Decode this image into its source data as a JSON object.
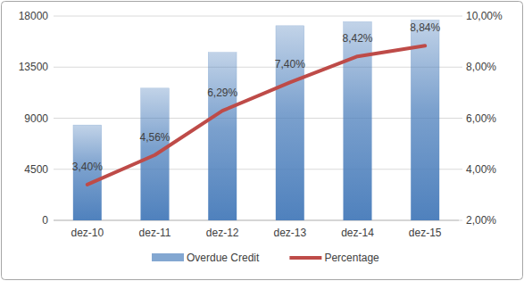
{
  "chart_data": {
    "type": "bar",
    "categories": [
      "dez-10",
      "dez-11",
      "dez-12",
      "dez-13",
      "dez-14",
      "dez-15"
    ],
    "series": [
      {
        "name": "Overdue Credit",
        "type": "bar",
        "color": "#4f81bd",
        "values": [
          8400,
          11650,
          14800,
          17150,
          17500,
          17650
        ]
      },
      {
        "name": "Percentage",
        "type": "line",
        "color": "#be4b48",
        "axis": "y2",
        "data_labels": true,
        "values": [
          3.4,
          4.56,
          6.29,
          7.4,
          8.42,
          8.84
        ],
        "value_labels": [
          "3,40%",
          "4,56%",
          "6,29%",
          "7,40%",
          "8,42%",
          "8,84%"
        ]
      }
    ],
    "ylim": [
      0,
      18000
    ],
    "yticks": [
      0,
      4500,
      9000,
      13500,
      18000
    ],
    "y2lim": [
      2,
      10
    ],
    "y2ticks": [
      {
        "value": 2,
        "label": "2,00%"
      },
      {
        "value": 4,
        "label": "4,00%"
      },
      {
        "value": 6,
        "label": "6,00%"
      },
      {
        "value": 8,
        "label": "8,00%"
      },
      {
        "value": 10,
        "label": "10,00%"
      }
    ],
    "grid": true,
    "legend": "bottom"
  }
}
